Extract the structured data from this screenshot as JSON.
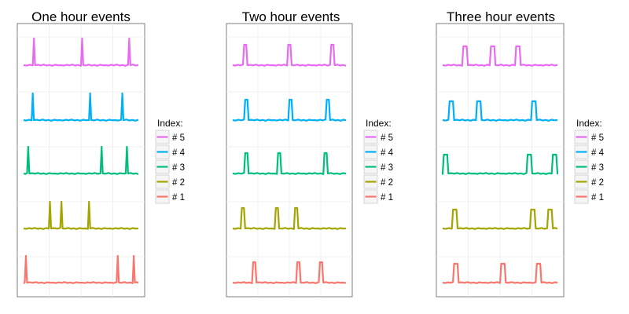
{
  "chart_data": [
    {
      "type": "line",
      "title": "One hour events",
      "xlabel": "",
      "ylabel": "",
      "grid": true,
      "legend_position": "right",
      "legend": {
        "title": "Index:",
        "entries": [
          "# 5",
          "# 4",
          "# 3",
          "# 2",
          "# 1"
        ]
      },
      "series": [
        {
          "name": "# 5",
          "color": "#E76BF3",
          "events": [
            {
              "start": 0.08,
              "end": 0.1
            },
            {
              "start": 0.5,
              "end": 0.52
            },
            {
              "start": 0.91,
              "end": 0.93
            }
          ]
        },
        {
          "name": "# 4",
          "color": "#00B0F6",
          "events": [
            {
              "start": 0.07,
              "end": 0.09
            },
            {
              "start": 0.57,
              "end": 0.59
            },
            {
              "start": 0.85,
              "end": 0.87
            }
          ]
        },
        {
          "name": "# 3",
          "color": "#00BF7D",
          "events": [
            {
              "start": 0.03,
              "end": 0.05
            },
            {
              "start": 0.67,
              "end": 0.69
            },
            {
              "start": 0.89,
              "end": 0.91
            }
          ]
        },
        {
          "name": "# 2",
          "color": "#A3A500",
          "events": [
            {
              "start": 0.22,
              "end": 0.24
            },
            {
              "start": 0.32,
              "end": 0.34
            },
            {
              "start": 0.56,
              "end": 0.58
            }
          ]
        },
        {
          "name": "# 1",
          "color": "#F8766D",
          "events": [
            {
              "start": 0.01,
              "end": 0.03
            },
            {
              "start": 0.81,
              "end": 0.83
            },
            {
              "start": 0.95,
              "end": 0.97
            }
          ]
        }
      ]
    },
    {
      "type": "line",
      "title": "Two hour events",
      "xlabel": "",
      "ylabel": "",
      "grid": true,
      "legend_position": "right",
      "legend": {
        "title": "Index:",
        "entries": [
          "# 5",
          "# 4",
          "# 3",
          "# 2",
          "# 1"
        ]
      },
      "series": [
        {
          "name": "# 5",
          "color": "#E76BF3",
          "events": [
            {
              "start": 0.09,
              "end": 0.13
            },
            {
              "start": 0.48,
              "end": 0.52
            },
            {
              "start": 0.86,
              "end": 0.9
            }
          ]
        },
        {
          "name": "# 4",
          "color": "#00B0F6",
          "events": [
            {
              "start": 0.1,
              "end": 0.14
            },
            {
              "start": 0.49,
              "end": 0.53
            },
            {
              "start": 0.82,
              "end": 0.86
            }
          ]
        },
        {
          "name": "# 3",
          "color": "#00BF7D",
          "events": [
            {
              "start": 0.1,
              "end": 0.14
            },
            {
              "start": 0.39,
              "end": 0.43
            },
            {
              "start": 0.8,
              "end": 0.84
            }
          ]
        },
        {
          "name": "# 2",
          "color": "#A3A500",
          "events": [
            {
              "start": 0.07,
              "end": 0.11
            },
            {
              "start": 0.37,
              "end": 0.41
            },
            {
              "start": 0.54,
              "end": 0.58
            }
          ]
        },
        {
          "name": "# 1",
          "color": "#F8766D",
          "events": [
            {
              "start": 0.17,
              "end": 0.21
            },
            {
              "start": 0.56,
              "end": 0.6
            },
            {
              "start": 0.76,
              "end": 0.8
            }
          ]
        }
      ]
    },
    {
      "type": "line",
      "title": "Three hour events",
      "xlabel": "",
      "ylabel": "",
      "grid": true,
      "legend_position": "right",
      "legend": {
        "title": "Index:",
        "entries": [
          "# 5",
          "# 4",
          "# 3",
          "# 2",
          "# 1"
        ]
      },
      "series": [
        {
          "name": "# 5",
          "color": "#E76BF3",
          "events": [
            {
              "start": 0.17,
              "end": 0.22
            },
            {
              "start": 0.41,
              "end": 0.46
            },
            {
              "start": 0.63,
              "end": 0.68
            }
          ]
        },
        {
          "name": "# 4",
          "color": "#00B0F6",
          "events": [
            {
              "start": 0.05,
              "end": 0.1
            },
            {
              "start": 0.29,
              "end": 0.34
            },
            {
              "start": 0.77,
              "end": 0.82
            }
          ]
        },
        {
          "name": "# 3",
          "color": "#00BF7D",
          "events": [
            {
              "start": 0.0,
              "end": 0.05
            },
            {
              "start": 0.73,
              "end": 0.78
            },
            {
              "start": 0.95,
              "end": 1.0
            }
          ]
        },
        {
          "name": "# 2",
          "color": "#A3A500",
          "events": [
            {
              "start": 0.08,
              "end": 0.13
            },
            {
              "start": 0.76,
              "end": 0.81
            },
            {
              "start": 0.91,
              "end": 0.96
            }
          ]
        },
        {
          "name": "# 1",
          "color": "#F8766D",
          "events": [
            {
              "start": 0.09,
              "end": 0.14
            },
            {
              "start": 0.5,
              "end": 0.55
            },
            {
              "start": 0.81,
              "end": 0.86
            }
          ]
        }
      ]
    }
  ]
}
